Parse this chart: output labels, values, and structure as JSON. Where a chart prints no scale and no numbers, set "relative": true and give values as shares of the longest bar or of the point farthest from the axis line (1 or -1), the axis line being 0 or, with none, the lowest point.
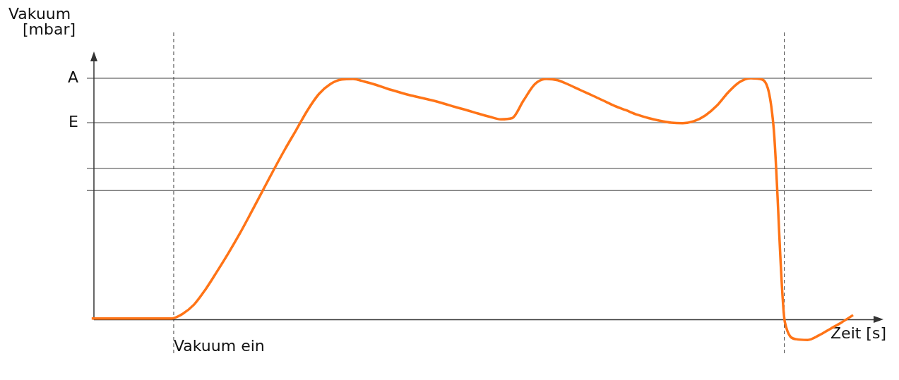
{
  "chart_data": {
    "type": "line",
    "relative": true,
    "ylabel": "Vakuum [mbar]",
    "xlabel": "Zeit [s]",
    "categories": [
      null,
      null,
      null,
      null,
      null,
      null,
      null,
      null,
      null,
      null,
      null,
      null,
      null,
      null,
      null,
      null,
      null,
      null,
      null,
      null,
      null,
      null,
      null,
      null,
      null,
      null,
      null,
      null,
      null,
      null,
      null,
      null,
      null,
      null,
      null,
      null,
      null,
      null,
      null,
      null,
      null,
      null,
      null,
      null,
      null,
      null,
      null,
      null,
      null,
      null,
      null,
      null,
      null,
      null,
      null,
      null,
      null,
      null,
      null,
      null,
      null,
      null,
      null,
      null,
      null,
      null,
      null,
      null
    ],
    "series": [
      {
        "color": "#ff7417",
        "values": [
          0.005,
          0.005,
          0.005,
          0.005,
          0.005,
          0.005,
          0.005,
          0.005,
          0.024,
          0.062,
          0.124,
          0.197,
          0.273,
          0.354,
          0.441,
          0.53,
          0.619,
          0.705,
          0.786,
          0.868,
          0.935,
          0.976,
          0.995,
          0.997,
          0.986,
          0.973,
          0.957,
          0.943,
          0.93,
          0.919,
          0.908,
          0.895,
          0.881,
          0.868,
          0.854,
          0.841,
          0.83,
          0.835,
          0.908,
          0.976,
          0.997,
          0.992,
          0.973,
          0.951,
          0.93,
          0.908,
          0.886,
          0.868,
          0.849,
          0.835,
          0.824,
          0.816,
          0.814,
          0.822,
          0.846,
          0.886,
          0.941,
          0.984,
          1.0,
          0.995,
          0.8,
          -0.011,
          -0.081,
          -0.084,
          -0.065,
          -0.038,
          -0.011,
          0.019
        ]
      }
    ],
    "ref_lines": [
      {
        "axis": "y",
        "value": 1,
        "label": "A",
        "color": "#404040",
        "line_style": "solid"
      },
      {
        "axis": "y",
        "value": 0.816,
        "label": "E",
        "color": "#404040",
        "line_style": "solid"
      },
      {
        "axis": "y",
        "value": 0.627,
        "color": "#404040",
        "line_style": "solid"
      },
      {
        "axis": "y",
        "value": 0.535,
        "color": "#404040",
        "line_style": "solid"
      }
    ],
    "annotations": [
      "Vakuum ein"
    ],
    "legend": false,
    "marker": "none",
    "line_style": "solid"
  }
}
